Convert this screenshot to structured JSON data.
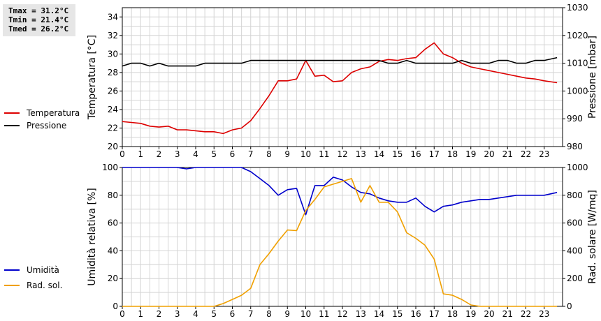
{
  "stats": {
    "tmax": "Tmax = 31.2°C",
    "tmin": "Tmin = 21.4°C",
    "tmed": "Tmed = 26.2°C"
  },
  "chart_data": [
    {
      "type": "line",
      "x_ticks": [
        "0",
        "1",
        "2",
        "3",
        "4",
        "5",
        "6",
        "7",
        "8",
        "9",
        "10",
        "11",
        "12",
        "13",
        "14",
        "15",
        "16",
        "17",
        "18",
        "19",
        "20",
        "21",
        "22",
        "23"
      ],
      "xlim": [
        0,
        24
      ],
      "grid": true,
      "legend_placement": "left",
      "y_left": {
        "label": "Temperatura [°C]",
        "lim": [
          20,
          35
        ],
        "ticks": [
          "20",
          "22",
          "24",
          "26",
          "28",
          "30",
          "32",
          "34"
        ]
      },
      "y_right": {
        "label": "Pressione [mbar]",
        "lim": [
          980,
          1030
        ],
        "ticks": [
          "980",
          "990",
          "1000",
          "1010",
          "1020",
          "1030"
        ]
      },
      "series": [
        {
          "name": "Temperatura",
          "axis": "left",
          "color": "#dd0000",
          "points": [
            [
              0,
              22.7
            ],
            [
              0.5,
              22.6
            ],
            [
              1,
              22.5
            ],
            [
              1.5,
              22.2
            ],
            [
              2,
              22.1
            ],
            [
              2.5,
              22.2
            ],
            [
              3,
              21.8
            ],
            [
              3.5,
              21.8
            ],
            [
              4,
              21.7
            ],
            [
              4.5,
              21.6
            ],
            [
              5,
              21.6
            ],
            [
              5.5,
              21.4
            ],
            [
              6,
              21.8
            ],
            [
              6.5,
              22.0
            ],
            [
              7,
              22.8
            ],
            [
              7.5,
              24.1
            ],
            [
              8,
              25.5
            ],
            [
              8.5,
              27.1
            ],
            [
              9,
              27.1
            ],
            [
              9.5,
              27.3
            ],
            [
              10,
              29.3
            ],
            [
              10.5,
              27.6
            ],
            [
              11,
              27.7
            ],
            [
              11.5,
              27.0
            ],
            [
              12,
              27.1
            ],
            [
              12.5,
              28.0
            ],
            [
              13,
              28.4
            ],
            [
              13.5,
              28.6
            ],
            [
              14,
              29.2
            ],
            [
              14.5,
              29.4
            ],
            [
              15,
              29.3
            ],
            [
              15.5,
              29.5
            ],
            [
              16,
              29.6
            ],
            [
              16.5,
              30.5
            ],
            [
              17,
              31.2
            ],
            [
              17.5,
              30.0
            ],
            [
              18,
              29.6
            ],
            [
              18.5,
              29.0
            ],
            [
              19,
              28.6
            ],
            [
              19.5,
              28.4
            ],
            [
              20,
              28.2
            ],
            [
              20.5,
              28.0
            ],
            [
              21,
              27.8
            ],
            [
              21.5,
              27.6
            ],
            [
              22,
              27.4
            ],
            [
              22.5,
              27.3
            ],
            [
              23,
              27.1
            ],
            [
              23.7,
              26.9
            ]
          ]
        },
        {
          "name": "Pressione",
          "axis": "right",
          "color": "#000000",
          "points": [
            [
              0,
              1009
            ],
            [
              0.5,
              1010
            ],
            [
              1,
              1010
            ],
            [
              1.5,
              1009
            ],
            [
              2,
              1010
            ],
            [
              2.5,
              1009
            ],
            [
              3,
              1009
            ],
            [
              3.5,
              1009
            ],
            [
              4,
              1009
            ],
            [
              4.5,
              1010
            ],
            [
              5,
              1010
            ],
            [
              5.5,
              1010
            ],
            [
              6,
              1010
            ],
            [
              6.5,
              1010
            ],
            [
              7,
              1011
            ],
            [
              10,
              1011
            ],
            [
              14,
              1011
            ],
            [
              14.5,
              1010
            ],
            [
              15,
              1010
            ],
            [
              15.5,
              1011
            ],
            [
              16,
              1010
            ],
            [
              16.5,
              1010
            ],
            [
              17,
              1010
            ],
            [
              17.5,
              1010
            ],
            [
              18,
              1010
            ],
            [
              18.5,
              1011
            ],
            [
              19,
              1010
            ],
            [
              19.5,
              1010
            ],
            [
              20,
              1010
            ],
            [
              20.5,
              1011
            ],
            [
              21,
              1011
            ],
            [
              21.5,
              1010
            ],
            [
              22,
              1010
            ],
            [
              22.5,
              1011
            ],
            [
              23,
              1011
            ],
            [
              23.7,
              1012
            ]
          ]
        }
      ]
    },
    {
      "type": "line",
      "x_ticks": [
        "0",
        "1",
        "2",
        "3",
        "4",
        "5",
        "6",
        "7",
        "8",
        "9",
        "10",
        "11",
        "12",
        "13",
        "14",
        "15",
        "16",
        "17",
        "18",
        "19",
        "20",
        "21",
        "22",
        "23"
      ],
      "xlim": [
        0,
        24
      ],
      "grid": true,
      "legend_placement": "left",
      "y_left": {
        "label": "Umidità relativa [%]",
        "lim": [
          0,
          100
        ],
        "ticks": [
          "0",
          "20",
          "40",
          "60",
          "80",
          "100"
        ]
      },
      "y_right": {
        "label": "Rad. solare [W/mq]",
        "lim": [
          0,
          1000
        ],
        "ticks": [
          "0",
          "200",
          "400",
          "600",
          "800",
          "1000"
        ]
      },
      "series": [
        {
          "name": "Umidità",
          "axis": "left",
          "color": "#0000cc",
          "points": [
            [
              0,
              100
            ],
            [
              3,
              100
            ],
            [
              3.5,
              99
            ],
            [
              4,
              100
            ],
            [
              6.5,
              100
            ],
            [
              7,
              97
            ],
            [
              7.5,
              92
            ],
            [
              8,
              87
            ],
            [
              8.5,
              80
            ],
            [
              9,
              84
            ],
            [
              9.5,
              85
            ],
            [
              10,
              66
            ],
            [
              10.5,
              87
            ],
            [
              11,
              87
            ],
            [
              11.5,
              93
            ],
            [
              12,
              91
            ],
            [
              12.5,
              86
            ],
            [
              13,
              82
            ],
            [
              13.5,
              81
            ],
            [
              14,
              78
            ],
            [
              14.5,
              76
            ],
            [
              15,
              75
            ],
            [
              15.5,
              75
            ],
            [
              16,
              78
            ],
            [
              16.5,
              72
            ],
            [
              17,
              68
            ],
            [
              17.5,
              72
            ],
            [
              18,
              73
            ],
            [
              18.5,
              75
            ],
            [
              19,
              76
            ],
            [
              19.5,
              77
            ],
            [
              20,
              77
            ],
            [
              20.5,
              78
            ],
            [
              21,
              79
            ],
            [
              21.5,
              80
            ],
            [
              22,
              80
            ],
            [
              22.5,
              80
            ],
            [
              23,
              80
            ],
            [
              23.7,
              82
            ]
          ]
        },
        {
          "name": "Rad. sol.",
          "axis": "right",
          "color": "#f0a000",
          "points": [
            [
              0,
              0
            ],
            [
              5,
              0
            ],
            [
              5.5,
              20
            ],
            [
              6,
              50
            ],
            [
              6.5,
              80
            ],
            [
              7,
              130
            ],
            [
              7.5,
              300
            ],
            [
              8,
              380
            ],
            [
              8.5,
              470
            ],
            [
              9,
              550
            ],
            [
              9.5,
              545
            ],
            [
              10,
              690
            ],
            [
              10.5,
              770
            ],
            [
              11,
              860
            ],
            [
              11.5,
              880
            ],
            [
              12,
              900
            ],
            [
              12.5,
              920
            ],
            [
              13,
              750
            ],
            [
              13.5,
              870
            ],
            [
              14,
              750
            ],
            [
              14.5,
              750
            ],
            [
              15,
              680
            ],
            [
              15.5,
              530
            ],
            [
              16,
              490
            ],
            [
              16.5,
              440
            ],
            [
              17,
              340
            ],
            [
              17.5,
              90
            ],
            [
              18,
              80
            ],
            [
              18.5,
              50
            ],
            [
              19,
              10
            ],
            [
              19.5,
              0
            ],
            [
              23.7,
              0
            ]
          ]
        }
      ]
    }
  ]
}
